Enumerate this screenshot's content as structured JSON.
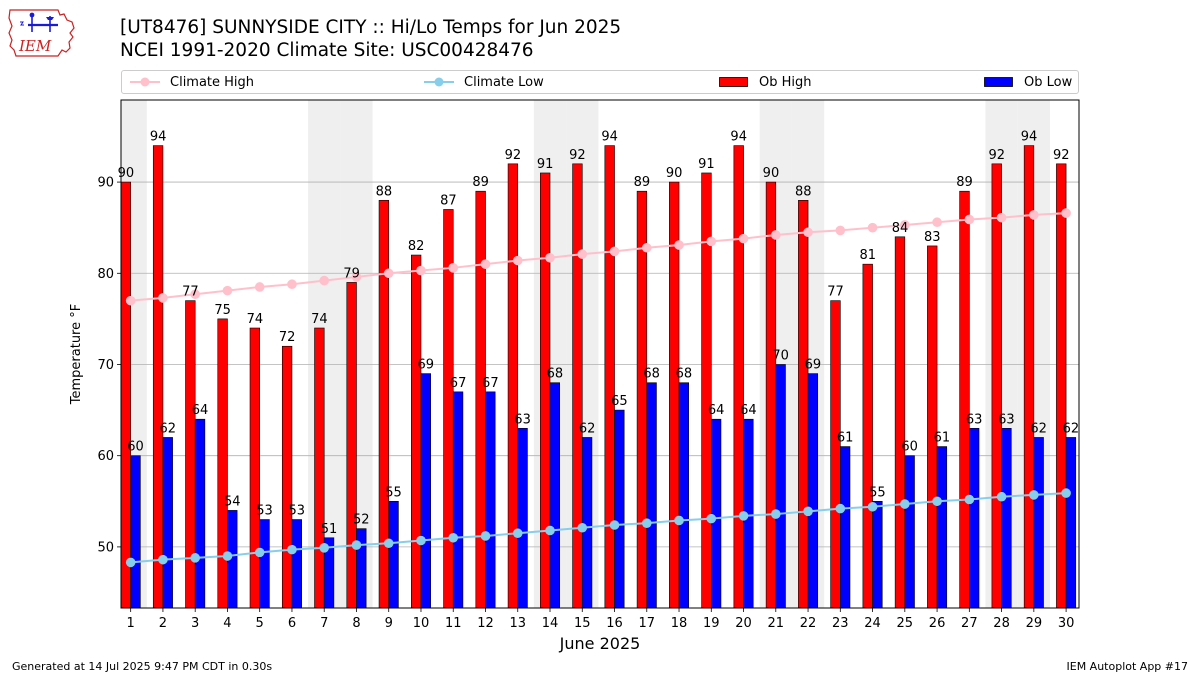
{
  "header": {
    "title_line1": "[UT8476] SUNNYSIDE CITY :: Hi/Lo Temps for Jun 2025",
    "title_line2": "NCEI 1991-2020 Climate Site: USC00428476",
    "logo_text": "IEM"
  },
  "legend": {
    "climate_high": "Climate High",
    "climate_low": "Climate Low",
    "ob_high": "Ob High",
    "ob_low": "Ob Low"
  },
  "footer": {
    "generated": "Generated at 14 Jul 2025 9:47 PM CDT in 0.30s",
    "app": "IEM Autoplot App #17"
  },
  "colors": {
    "ob_high": "#ff0000",
    "ob_low": "#0000ff",
    "climate_high": "#ffc0cb",
    "climate_low": "#87ceeb",
    "weekend_band": "#efefef",
    "grid": "#b0b0b0"
  },
  "chart_data": {
    "type": "bar",
    "xlabel": "June 2025",
    "ylabel": "Temperature °F",
    "ylim": [
      43.3,
      99.0
    ],
    "yticks": [
      50,
      60,
      70,
      80,
      90
    ],
    "grid": "horizontal",
    "legend_position": "top",
    "categories": [
      "1",
      "2",
      "3",
      "4",
      "5",
      "6",
      "7",
      "8",
      "9",
      "10",
      "11",
      "12",
      "13",
      "14",
      "15",
      "16",
      "17",
      "18",
      "19",
      "20",
      "21",
      "22",
      "23",
      "24",
      "25",
      "26",
      "27",
      "28",
      "29",
      "30"
    ],
    "shaded_days": [
      1,
      7,
      8,
      14,
      15,
      21,
      22,
      28,
      29
    ],
    "series": [
      {
        "name": "Ob High",
        "values": [
          90,
          94,
          77,
          75,
          74,
          72,
          74,
          79,
          88,
          82,
          87,
          89,
          92,
          91,
          92,
          94,
          89,
          90,
          91,
          94,
          90,
          88,
          77,
          81,
          84,
          83,
          89,
          92,
          94,
          92
        ]
      },
      {
        "name": "Ob Low",
        "values": [
          60,
          62,
          64,
          54,
          53,
          53,
          51,
          52,
          55,
          69,
          67,
          67,
          63,
          68,
          62,
          65,
          68,
          68,
          64,
          64,
          70,
          69,
          61,
          55,
          60,
          61,
          63,
          63,
          62,
          62
        ]
      },
      {
        "name": "Climate High",
        "values": [
          77.0,
          77.3,
          77.7,
          78.1,
          78.5,
          78.8,
          79.2,
          79.6,
          80.0,
          80.3,
          80.6,
          81.0,
          81.4,
          81.7,
          82.1,
          82.4,
          82.8,
          83.1,
          83.5,
          83.8,
          84.2,
          84.5,
          84.7,
          85.0,
          85.3,
          85.6,
          85.9,
          86.1,
          86.4,
          86.6
        ]
      },
      {
        "name": "Climate Low",
        "values": [
          48.3,
          48.6,
          48.8,
          49.0,
          49.4,
          49.7,
          49.9,
          50.2,
          50.4,
          50.7,
          51.0,
          51.2,
          51.5,
          51.8,
          52.1,
          52.4,
          52.6,
          52.9,
          53.1,
          53.4,
          53.6,
          53.9,
          54.2,
          54.4,
          54.7,
          55.0,
          55.2,
          55.5,
          55.7,
          55.9
        ]
      }
    ]
  }
}
